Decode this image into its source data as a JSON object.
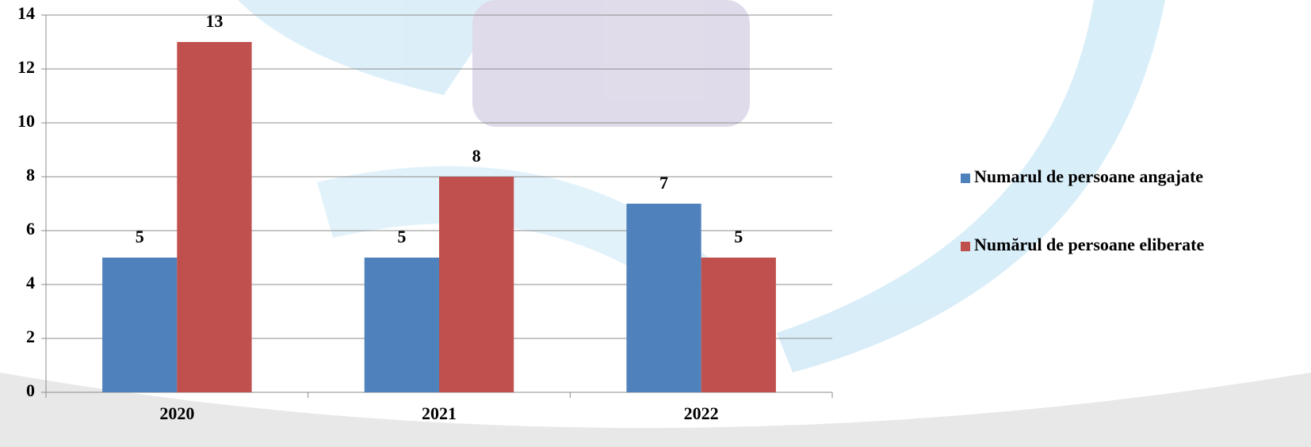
{
  "chart_data": {
    "type": "bar",
    "categories": [
      "2020",
      "2021",
      "2022"
    ],
    "series": [
      {
        "name": "Numarul de persoane angajate",
        "color": "#4f81bd",
        "values": [
          5,
          5,
          7
        ]
      },
      {
        "name": "Numărul de persoane eliberate",
        "color": "#c0504d",
        "values": [
          13,
          8,
          5
        ]
      }
    ],
    "ylim": [
      0,
      14
    ],
    "yticks": [
      0,
      2,
      4,
      6,
      8,
      10,
      12,
      14
    ],
    "grid": true,
    "legend": "right"
  }
}
